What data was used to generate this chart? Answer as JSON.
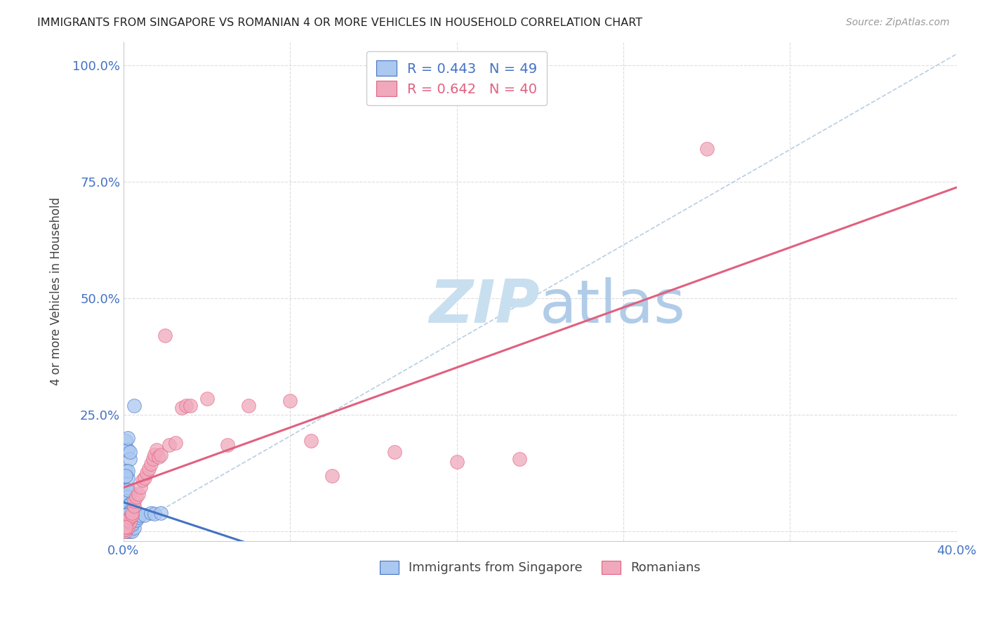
{
  "title": "IMMIGRANTS FROM SINGAPORE VS ROMANIAN 4 OR MORE VEHICLES IN HOUSEHOLD CORRELATION CHART",
  "source": "Source: ZipAtlas.com",
  "ylabel": "4 or more Vehicles in Household",
  "xlim": [
    0.0,
    0.4
  ],
  "ylim": [
    -0.02,
    1.05
  ],
  "xticks": [
    0.0,
    0.08,
    0.16,
    0.24,
    0.32,
    0.4
  ],
  "xticklabels": [
    "0.0%",
    "",
    "",
    "",
    "",
    "40.0%"
  ],
  "ytick_positions": [
    0.0,
    0.25,
    0.5,
    0.75,
    1.0
  ],
  "ytick_labels": [
    "",
    "25.0%",
    "50.0%",
    "75.0%",
    "100.0%"
  ],
  "ytick_color": "#4472c4",
  "xtick_color": "#4472c4",
  "background_color": "#ffffff",
  "grid_color": "#dddddd",
  "watermark_zip": "ZIP",
  "watermark_atlas": "atlas",
  "watermark_color_zip": "#c8dff0",
  "watermark_color_atlas": "#b0cce8",
  "legend_r_singapore": "0.443",
  "legend_n_singapore": "49",
  "legend_r_romanian": "0.642",
  "legend_n_romanian": "40",
  "singapore_color": "#aac8f0",
  "romanian_color": "#f0a8bc",
  "singapore_line_color": "#4472c4",
  "romanian_line_color": "#e06080",
  "diagonal_color": "#b0c8e0",
  "singapore_points": [
    [
      0.001,
      0.195
    ],
    [
      0.002,
      0.175
    ],
    [
      0.003,
      0.155
    ],
    [
      0.001,
      0.13
    ],
    [
      0.002,
      0.115
    ],
    [
      0.001,
      0.09
    ],
    [
      0.003,
      0.085
    ],
    [
      0.002,
      0.075
    ],
    [
      0.001,
      0.065
    ],
    [
      0.003,
      0.06
    ],
    [
      0.002,
      0.055
    ],
    [
      0.004,
      0.05
    ],
    [
      0.001,
      0.048
    ],
    [
      0.003,
      0.042
    ],
    [
      0.002,
      0.038
    ],
    [
      0.001,
      0.035
    ],
    [
      0.003,
      0.03
    ],
    [
      0.002,
      0.025
    ],
    [
      0.001,
      0.022
    ],
    [
      0.003,
      0.018
    ],
    [
      0.002,
      0.015
    ],
    [
      0.001,
      0.013
    ],
    [
      0.002,
      0.01
    ],
    [
      0.001,
      0.008
    ],
    [
      0.003,
      0.007
    ],
    [
      0.002,
      0.005
    ],
    [
      0.001,
      0.004
    ],
    [
      0.002,
      0.003
    ],
    [
      0.001,
      0.002
    ],
    [
      0.002,
      0.001
    ],
    [
      0.001,
      0.0
    ],
    [
      0.003,
      0.0
    ],
    [
      0.004,
      0.0
    ],
    [
      0.005,
      0.008
    ],
    [
      0.004,
      0.015
    ],
    [
      0.006,
      0.025
    ],
    [
      0.007,
      0.03
    ],
    [
      0.008,
      0.035
    ],
    [
      0.01,
      0.035
    ],
    [
      0.013,
      0.04
    ],
    [
      0.015,
      0.038
    ],
    [
      0.018,
      0.04
    ],
    [
      0.005,
      0.27
    ],
    [
      0.002,
      0.2
    ],
    [
      0.003,
      0.17
    ],
    [
      0.002,
      0.13
    ],
    [
      0.001,
      0.12
    ],
    [
      0.002,
      0.09
    ],
    [
      0.001,
      0.01
    ]
  ],
  "romanian_points": [
    [
      0.001,
      0.0
    ],
    [
      0.001,
      0.005
    ],
    [
      0.002,
      0.01
    ],
    [
      0.003,
      0.02
    ],
    [
      0.002,
      0.025
    ],
    [
      0.003,
      0.03
    ],
    [
      0.004,
      0.035
    ],
    [
      0.004,
      0.04
    ],
    [
      0.005,
      0.055
    ],
    [
      0.005,
      0.065
    ],
    [
      0.006,
      0.075
    ],
    [
      0.007,
      0.08
    ],
    [
      0.008,
      0.095
    ],
    [
      0.009,
      0.11
    ],
    [
      0.01,
      0.115
    ],
    [
      0.011,
      0.125
    ],
    [
      0.012,
      0.135
    ],
    [
      0.013,
      0.145
    ],
    [
      0.014,
      0.155
    ],
    [
      0.015,
      0.165
    ],
    [
      0.016,
      0.175
    ],
    [
      0.017,
      0.16
    ],
    [
      0.018,
      0.165
    ],
    [
      0.022,
      0.185
    ],
    [
      0.025,
      0.19
    ],
    [
      0.028,
      0.265
    ],
    [
      0.03,
      0.27
    ],
    [
      0.032,
      0.27
    ],
    [
      0.04,
      0.285
    ],
    [
      0.05,
      0.185
    ],
    [
      0.06,
      0.27
    ],
    [
      0.08,
      0.28
    ],
    [
      0.09,
      0.195
    ],
    [
      0.1,
      0.12
    ],
    [
      0.13,
      0.17
    ],
    [
      0.16,
      0.15
    ],
    [
      0.19,
      0.155
    ],
    [
      0.28,
      0.82
    ],
    [
      0.02,
      0.42
    ],
    [
      0.001,
      0.01
    ]
  ]
}
